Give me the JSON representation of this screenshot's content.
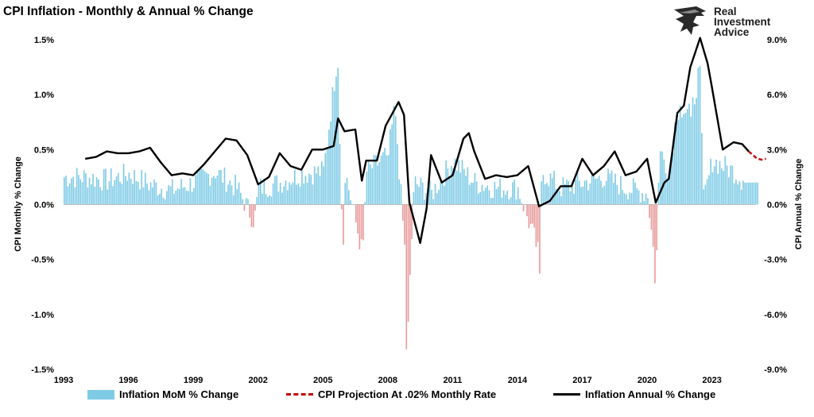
{
  "title": "CPI Inflation - Monthly & Annual % Change",
  "logo": {
    "line1": "Real",
    "line2": "Investment",
    "line3": "Advice"
  },
  "chart_data": {
    "type": "bar+line",
    "title": "CPI Inflation - Monthly & Annual % Change",
    "xlabel": "",
    "ylabel_left": "CPI Monthly % Change",
    "ylabel_right": "CPI Annual % Change",
    "ylim_left": [
      -1.5,
      1.5
    ],
    "ylim_right": [
      -9.0,
      9.0
    ],
    "x_range": [
      1993,
      2025
    ],
    "x_ticks": [
      "1993",
      "1996",
      "1999",
      "2002",
      "2005",
      "2008",
      "2011",
      "2014",
      "2017",
      "2020",
      "2023"
    ],
    "y_ticks_left": [
      "1.5%",
      "1.0%",
      "0.5%",
      "0.0%",
      "-0.5%",
      "-1.0%",
      "-1.5%"
    ],
    "y_ticks_right": [
      "9.0%",
      "6.0%",
      "3.0%",
      "0.0%",
      "-3.0%",
      "-6.0%",
      "-9.0%"
    ],
    "colors": {
      "positive_bar": "#7ecbe6",
      "negative_bar": "#e89a9a",
      "annual_line": "#000000",
      "projection": "#c00000"
    },
    "legend": [
      {
        "label": "Inflation MoM % Change",
        "style": "bar"
      },
      {
        "label": "CPI Projection At .02% Monthly Rate",
        "style": "dashed"
      },
      {
        "label": "Inflation Annual % Change",
        "style": "line"
      }
    ],
    "monthly_series": {
      "name": "Inflation MoM % Change",
      "start": 1993.0,
      "step": 0.0833333,
      "anchors": [
        [
          1993.0,
          0.25
        ],
        [
          1994.0,
          0.25
        ],
        [
          1995.0,
          0.22
        ],
        [
          1996.0,
          0.28
        ],
        [
          1997.0,
          0.18
        ],
        [
          1998.0,
          0.13
        ],
        [
          1999.0,
          0.2
        ],
        [
          2000.0,
          0.3
        ],
        [
          2001.0,
          0.15
        ],
        [
          2001.8,
          -0.15
        ],
        [
          2002.0,
          0.15
        ],
        [
          2003.0,
          0.2
        ],
        [
          2004.0,
          0.28
        ],
        [
          2005.0,
          0.3
        ],
        [
          2005.65,
          1.37
        ],
        [
          2005.9,
          -0.5
        ],
        [
          2006.0,
          0.3
        ],
        [
          2006.8,
          -0.45
        ],
        [
          2007.0,
          0.3
        ],
        [
          2008.0,
          0.45
        ],
        [
          2008.3,
          0.9
        ],
        [
          2008.75,
          -0.4
        ],
        [
          2008.85,
          -1.5
        ],
        [
          2008.95,
          -0.85
        ],
        [
          2009.2,
          0.2
        ],
        [
          2010.0,
          0.1
        ],
        [
          2011.0,
          0.4
        ],
        [
          2011.5,
          0.3
        ],
        [
          2012.0,
          0.2
        ],
        [
          2013.0,
          0.15
        ],
        [
          2014.0,
          0.15
        ],
        [
          2014.9,
          -0.4
        ],
        [
          2015.0,
          -0.63
        ],
        [
          2015.1,
          0.3
        ],
        [
          2016.0,
          0.15
        ],
        [
          2017.0,
          0.2
        ],
        [
          2018.0,
          0.25
        ],
        [
          2019.0,
          0.15
        ],
        [
          2020.0,
          0.1
        ],
        [
          2020.25,
          -0.4
        ],
        [
          2020.35,
          -0.78
        ],
        [
          2020.55,
          0.5
        ],
        [
          2021.0,
          0.3
        ],
        [
          2021.3,
          0.8
        ],
        [
          2021.5,
          0.9
        ],
        [
          2022.0,
          0.8
        ],
        [
          2022.45,
          1.3
        ],
        [
          2022.55,
          0.0
        ],
        [
          2023.0,
          0.4
        ],
        [
          2024.0,
          0.3
        ],
        [
          2024.5,
          0.2
        ],
        [
          2025.2,
          0.2
        ]
      ]
    },
    "annual_series": {
      "name": "Inflation Annual % Change",
      "points": [
        [
          1994.0,
          2.5
        ],
        [
          1994.5,
          2.6
        ],
        [
          1995.0,
          2.9
        ],
        [
          1995.5,
          2.8
        ],
        [
          1996.0,
          2.8
        ],
        [
          1996.5,
          2.9
        ],
        [
          1997.0,
          3.1
        ],
        [
          1997.5,
          2.3
        ],
        [
          1998.0,
          1.6
        ],
        [
          1998.5,
          1.7
        ],
        [
          1999.0,
          1.6
        ],
        [
          1999.5,
          2.2
        ],
        [
          2000.0,
          2.9
        ],
        [
          2000.5,
          3.6
        ],
        [
          2001.0,
          3.5
        ],
        [
          2001.5,
          2.7
        ],
        [
          2002.0,
          1.1
        ],
        [
          2002.5,
          1.5
        ],
        [
          2003.0,
          2.8
        ],
        [
          2003.5,
          2.1
        ],
        [
          2004.0,
          1.9
        ],
        [
          2004.5,
          3.0
        ],
        [
          2005.0,
          3.0
        ],
        [
          2005.5,
          3.2
        ],
        [
          2005.7,
          4.7
        ],
        [
          2006.0,
          4.0
        ],
        [
          2006.5,
          4.1
        ],
        [
          2006.8,
          1.3
        ],
        [
          2007.0,
          2.4
        ],
        [
          2007.5,
          2.4
        ],
        [
          2007.9,
          4.3
        ],
        [
          2008.5,
          5.6
        ],
        [
          2008.75,
          4.9
        ],
        [
          2009.0,
          0.1
        ],
        [
          2009.5,
          -2.1
        ],
        [
          2009.8,
          -0.2
        ],
        [
          2010.0,
          2.7
        ],
        [
          2010.5,
          1.2
        ],
        [
          2011.0,
          1.6
        ],
        [
          2011.5,
          3.6
        ],
        [
          2011.75,
          3.9
        ],
        [
          2012.0,
          2.9
        ],
        [
          2012.5,
          1.4
        ],
        [
          2013.0,
          1.6
        ],
        [
          2013.5,
          1.5
        ],
        [
          2014.0,
          1.6
        ],
        [
          2014.5,
          2.1
        ],
        [
          2015.0,
          -0.1
        ],
        [
          2015.5,
          0.2
        ],
        [
          2016.0,
          1.0
        ],
        [
          2016.5,
          1.0
        ],
        [
          2017.0,
          2.5
        ],
        [
          2017.5,
          1.6
        ],
        [
          2018.0,
          2.1
        ],
        [
          2018.5,
          2.9
        ],
        [
          2019.0,
          1.6
        ],
        [
          2019.5,
          1.8
        ],
        [
          2020.0,
          2.5
        ],
        [
          2020.4,
          0.1
        ],
        [
          2020.8,
          1.2
        ],
        [
          2021.0,
          1.4
        ],
        [
          2021.4,
          5.0
        ],
        [
          2021.7,
          5.4
        ],
        [
          2022.0,
          7.5
        ],
        [
          2022.45,
          9.1
        ],
        [
          2022.8,
          7.7
        ],
        [
          2023.0,
          6.4
        ],
        [
          2023.5,
          3.0
        ],
        [
          2024.0,
          3.4
        ],
        [
          2024.4,
          3.3
        ],
        [
          2024.7,
          2.9
        ]
      ]
    },
    "projection_series": {
      "name": "CPI Projection At .02% Monthly Rate",
      "points": [
        [
          2024.7,
          2.9
        ],
        [
          2024.9,
          2.7
        ],
        [
          2025.1,
          2.5
        ],
        [
          2025.3,
          2.45
        ],
        [
          2025.5,
          2.5
        ]
      ]
    }
  }
}
